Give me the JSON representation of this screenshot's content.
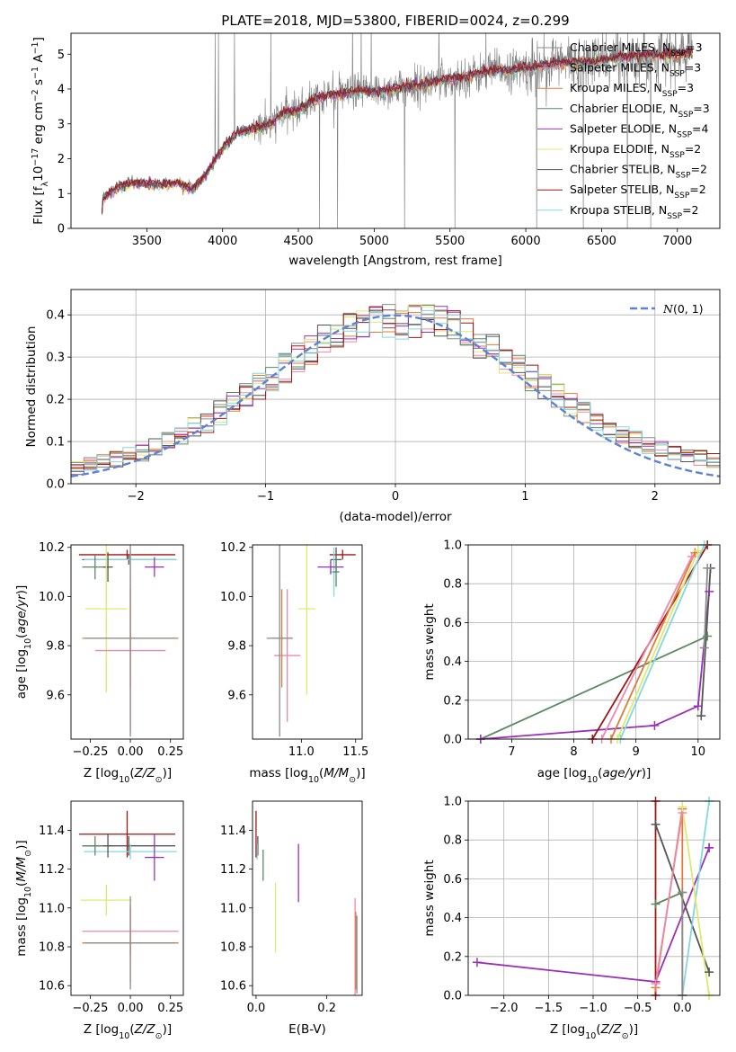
{
  "title": "PLATE=2018, MJD=53800, FIBERID=0024, z=0.299",
  "colors": {
    "Chabrier MILES": "#8c8c8c",
    "Salpeter MILES": "#ee88aa",
    "Kroupa MILES": "#e07b39",
    "Chabrier ELODIE": "#5c8a65",
    "Salpeter ELODIE": "#9b30b8",
    "Kroupa ELODIE": "#dfe870",
    "Chabrier STELIB": "#555555",
    "Salpeter STELIB": "#a01515",
    "Kroupa STELIB": "#82d8dd",
    "gaussian": "#5b84d6"
  },
  "models": [
    {
      "name": "Chabrier MILES",
      "nssp": 3
    },
    {
      "name": "Salpeter MILES",
      "nssp": 3
    },
    {
      "name": "Kroupa MILES",
      "nssp": 3
    },
    {
      "name": "Chabrier ELODIE",
      "nssp": 3
    },
    {
      "name": "Salpeter ELODIE",
      "nssp": 4
    },
    {
      "name": "Kroupa ELODIE",
      "nssp": 2
    },
    {
      "name": "Chabrier STELIB",
      "nssp": 2
    },
    {
      "name": "Salpeter STELIB",
      "nssp": 2
    },
    {
      "name": "Kroupa STELIB",
      "nssp": 2
    }
  ],
  "chart_data": [
    {
      "id": "spectrum",
      "type": "line",
      "xlabel": "wavelength [Angstrom, rest frame]",
      "ylabel": "Flux [f_λ 10^-17 erg cm^-2 s^-1 A^-1]",
      "xlim": [
        3000,
        7280
      ],
      "ylim": [
        0,
        5.6
      ],
      "xticks": [
        3500,
        4000,
        4500,
        5000,
        5500,
        6000,
        6500,
        7000
      ],
      "yticks": [
        0,
        1,
        2,
        3,
        4,
        5
      ],
      "legend": "top-right",
      "continuum_knots": [
        [
          3200,
          0.0
        ],
        [
          3210,
          0.85
        ],
        [
          3300,
          1.15
        ],
        [
          3400,
          1.3
        ],
        [
          3600,
          1.25
        ],
        [
          3700,
          1.3
        ],
        [
          3800,
          1.1
        ],
        [
          3900,
          1.6
        ],
        [
          4000,
          2.3
        ],
        [
          4100,
          2.75
        ],
        [
          4200,
          2.85
        ],
        [
          4300,
          2.95
        ],
        [
          4400,
          3.3
        ],
        [
          4500,
          3.4
        ],
        [
          4600,
          3.7
        ],
        [
          4700,
          3.85
        ],
        [
          4800,
          3.85
        ],
        [
          4900,
          3.95
        ],
        [
          5000,
          3.9
        ],
        [
          5100,
          4.0
        ],
        [
          5200,
          4.05
        ],
        [
          5300,
          4.1
        ],
        [
          5400,
          4.2
        ],
        [
          5500,
          4.3
        ],
        [
          5600,
          4.35
        ],
        [
          5700,
          4.45
        ],
        [
          5800,
          4.55
        ],
        [
          5900,
          4.55
        ],
        [
          6000,
          4.6
        ],
        [
          6200,
          4.75
        ],
        [
          6400,
          4.75
        ],
        [
          6600,
          4.9
        ],
        [
          6800,
          4.95
        ],
        [
          7000,
          5.0
        ],
        [
          7100,
          5.05
        ]
      ]
    },
    {
      "id": "residuals",
      "type": "step",
      "xlabel": "(data-model)/error",
      "ylabel": "Normed distribution",
      "xlim": [
        -2.5,
        2.5
      ],
      "ylim": [
        0,
        0.46
      ],
      "xticks": [
        -2,
        -1,
        0,
        1,
        2
      ],
      "yticks": [
        0.0,
        0.1,
        0.2,
        0.3,
        0.4
      ],
      "legend": "top-right",
      "gaussian_label": "N(0,1)",
      "grid": true
    },
    {
      "id": "age_vs_Z",
      "type": "errorbar",
      "xlabel": "Z [log10(Z/Z⊙)]",
      "ylabel": "age  [log10(age/yr)]",
      "xlim": [
        -0.37,
        0.33
      ],
      "ylim": [
        9.42,
        10.21
      ],
      "xticks": [
        -0.25,
        0.0,
        0.25
      ],
      "yticks": [
        9.6,
        9.8,
        10.0,
        10.2
      ],
      "points": [
        {
          "model": "Salpeter STELIB",
          "x": -0.02,
          "y": 10.17,
          "xerr": 0.3,
          "yerr": 0.02
        },
        {
          "model": "Chabrier STELIB",
          "x": -0.01,
          "y": 10.15,
          "xerr": 0.29,
          "yerr": 0.02
        },
        {
          "model": "Kroupa STELIB",
          "x": 0.0,
          "y": 10.15,
          "xerr": 0.29,
          "yerr": 0.04
        },
        {
          "model": "Chabrier ELODIE",
          "x": -0.22,
          "y": 10.12,
          "xerr": 0.08,
          "yerr": 0.05
        },
        {
          "model": "Salpeter ELODIE",
          "x": 0.15,
          "y": 10.12,
          "xerr": 0.06,
          "yerr": 0.04
        },
        {
          "model": "Chabrier STELIB",
          "x": -0.14,
          "y": 10.12,
          "xerr": 0.03,
          "yerr": 0.06
        },
        {
          "model": "Kroupa ELODIE",
          "x": -0.15,
          "y": 9.95,
          "xerr": 0.13,
          "yerr": 0.34
        },
        {
          "model": "Salpeter MILES",
          "x": 0.0,
          "y": 9.78,
          "xerr": 0.22,
          "yerr": 0.33
        },
        {
          "model": "Kroupa MILES",
          "x": 0.0,
          "y": 9.83,
          "xerr": 0.3,
          "yerr": 0.2
        },
        {
          "model": "Chabrier MILES",
          "x": 0.0,
          "y": 9.83,
          "xerr": 0.28,
          "yerr": 0.4
        }
      ]
    },
    {
      "id": "age_vs_mass",
      "type": "errorbar",
      "xlabel": "mass [log10(M/M⊙)]",
      "ylabel": "",
      "xlim": [
        10.55,
        11.56
      ],
      "ylim": [
        9.42,
        10.21
      ],
      "xticks": [
        11.0,
        11.5
      ],
      "yticks": [
        9.6,
        9.8,
        10.0,
        10.2
      ],
      "points": [
        {
          "model": "Salpeter STELIB",
          "x": 11.38,
          "y": 10.17,
          "xerr": 0.12,
          "yerr": 0.02
        },
        {
          "model": "Chabrier STELIB",
          "x": 11.32,
          "y": 10.15,
          "xerr": 0.05,
          "yerr": 0.05
        },
        {
          "model": "Kroupa STELIB",
          "x": 11.3,
          "y": 10.1,
          "xerr": 0.04,
          "yerr": 0.1
        },
        {
          "model": "Salpeter ELODIE",
          "x": 11.27,
          "y": 10.12,
          "xerr": 0.12,
          "yerr": 0.03
        },
        {
          "model": "Chabrier ELODIE",
          "x": 11.32,
          "y": 10.1,
          "xerr": 0.03,
          "yerr": 0.06
        },
        {
          "model": "Kroupa ELODIE",
          "x": 11.05,
          "y": 9.95,
          "xerr": 0.08,
          "yerr": 0.35
        },
        {
          "model": "Salpeter MILES",
          "x": 10.87,
          "y": 9.76,
          "xerr": 0.12,
          "yerr": 0.27
        },
        {
          "model": "Kroupa MILES",
          "x": 10.82,
          "y": 9.83,
          "xerr": 0.1,
          "yerr": 0.2
        },
        {
          "model": "Chabrier MILES",
          "x": 10.8,
          "y": 9.83,
          "xerr": 0.12,
          "yerr": 0.4
        }
      ]
    },
    {
      "id": "weight_vs_age",
      "type": "line",
      "xlabel": "age  [log10(age/yr)]",
      "ylabel": "mass weight",
      "xlim": [
        6.3,
        10.35
      ],
      "ylim": [
        0,
        1.0
      ],
      "xticks": [
        7,
        8,
        9,
        10
      ],
      "yticks": [
        0.0,
        0.2,
        0.4,
        0.6,
        0.8,
        1.0
      ],
      "grid": true,
      "series": [
        {
          "model": "Chabrier ELODIE",
          "x": [
            6.5,
            10.15
          ],
          "y": [
            0.0,
            0.53
          ]
        },
        {
          "model": "Salpeter ELODIE",
          "x": [
            6.5,
            9.3,
            10.0,
            10.18
          ],
          "y": [
            0.0,
            0.07,
            0.17,
            0.76
          ]
        },
        {
          "model": "Salpeter STELIB",
          "x": [
            8.3,
            10.15
          ],
          "y": [
            0.0,
            1.0
          ]
        },
        {
          "model": "Kroupa MILES",
          "x": [
            8.6,
            9.95
          ],
          "y": [
            0.0,
            0.96
          ]
        },
        {
          "model": "Salpeter MILES",
          "x": [
            8.45,
            9.9
          ],
          "y": [
            0.0,
            0.94
          ]
        },
        {
          "model": "Kroupa STELIB",
          "x": [
            8.75,
            10.1
          ],
          "y": [
            0.0,
            1.0
          ]
        },
        {
          "model": "Kroupa ELODIE",
          "x": [
            8.7,
            10.0
          ],
          "y": [
            0.0,
            0.97
          ]
        },
        {
          "model": "Chabrier STELIB",
          "x": [
            10.05,
            10.2
          ],
          "y": [
            0.12,
            0.88
          ]
        },
        {
          "model": "Chabrier MILES",
          "x": [
            10.1,
            10.15
          ],
          "y": [
            0.47,
            0.88
          ]
        }
      ]
    },
    {
      "id": "mass_vs_Z",
      "type": "errorbar",
      "xlabel": "Z [log10(Z/Z⊙)]",
      "ylabel": "mass [log10(M/M⊙)]",
      "xlim": [
        -0.37,
        0.33
      ],
      "ylim": [
        10.55,
        11.55
      ],
      "xticks": [
        -0.25,
        0.0,
        0.25
      ],
      "yticks": [
        10.6,
        10.8,
        11.0,
        11.2,
        11.4
      ],
      "points": [
        {
          "model": "Salpeter STELIB",
          "x": -0.02,
          "y": 11.38,
          "xerr": 0.3,
          "yerr": 0.12
        },
        {
          "model": "Chabrier STELIB",
          "x": -0.01,
          "y": 11.32,
          "xerr": 0.29,
          "yerr": 0.05
        },
        {
          "model": "Kroupa STELIB",
          "x": 0.0,
          "y": 11.29,
          "xerr": 0.29,
          "yerr": 0.04
        },
        {
          "model": "Chabrier ELODIE",
          "x": -0.22,
          "y": 11.32,
          "xerr": 0.08,
          "yerr": 0.05
        },
        {
          "model": "Salpeter ELODIE",
          "x": 0.15,
          "y": 11.26,
          "xerr": 0.06,
          "yerr": 0.12
        },
        {
          "model": "Chabrier STELIB",
          "x": -0.14,
          "y": 11.32,
          "xerr": 0.03,
          "yerr": 0.06
        },
        {
          "model": "Kroupa ELODIE",
          "x": -0.15,
          "y": 11.04,
          "xerr": 0.16,
          "yerr": 0.08
        },
        {
          "model": "Salpeter MILES",
          "x": 0.0,
          "y": 10.88,
          "xerr": 0.3,
          "yerr": 0.12
        },
        {
          "model": "Kroupa MILES",
          "x": 0.0,
          "y": 10.82,
          "xerr": 0.3,
          "yerr": 0.2
        },
        {
          "model": "Chabrier MILES",
          "x": 0.0,
          "y": 10.82,
          "xerr": 0.28,
          "yerr": 0.24
        }
      ]
    },
    {
      "id": "mass_vs_ebv",
      "type": "errorbar",
      "xlabel": "E(B-V)",
      "ylabel": "",
      "xlim": [
        -0.01,
        0.3
      ],
      "ylim": [
        10.55,
        11.55
      ],
      "xticks": [
        0.0,
        0.2
      ],
      "yticks": [
        10.6,
        10.8,
        11.0,
        11.2,
        11.4
      ],
      "points": [
        {
          "model": "Salpeter STELIB",
          "x": 0.0,
          "y": 11.38,
          "xerr": 0.0,
          "yerr": 0.12
        },
        {
          "model": "Chabrier STELIB",
          "x": 0.005,
          "y": 11.32,
          "xerr": 0.0,
          "yerr": 0.05
        },
        {
          "model": "Kroupa STELIB",
          "x": 0.003,
          "y": 11.29,
          "xerr": 0.0,
          "yerr": 0.04
        },
        {
          "model": "Chabrier ELODIE",
          "x": 0.02,
          "y": 11.22,
          "xerr": 0.0,
          "yerr": 0.08
        },
        {
          "model": "Salpeter ELODIE",
          "x": 0.12,
          "y": 11.18,
          "xerr": 0.0,
          "yerr": 0.15
        },
        {
          "model": "Kroupa ELODIE",
          "x": 0.055,
          "y": 10.95,
          "xerr": 0.0,
          "yerr": 0.18
        },
        {
          "model": "Salpeter MILES",
          "x": 0.28,
          "y": 10.8,
          "xerr": 0.0,
          "yerr": 0.25
        },
        {
          "model": "Kroupa MILES",
          "x": 0.282,
          "y": 10.78,
          "xerr": 0.0,
          "yerr": 0.2
        },
        {
          "model": "Chabrier MILES",
          "x": 0.285,
          "y": 10.76,
          "xerr": 0.0,
          "yerr": 0.2
        }
      ]
    },
    {
      "id": "weight_vs_Z",
      "type": "line",
      "xlabel": "Z [log10(Z/Z⊙)]",
      "ylabel": "mass weight",
      "xlim": [
        -2.4,
        0.42
      ],
      "ylim": [
        0,
        1.0
      ],
      "xticks": [
        -2.0,
        -1.5,
        -1.0,
        -0.5,
        0.0
      ],
      "yticks": [
        0.0,
        0.2,
        0.4,
        0.6,
        0.8,
        1.0
      ],
      "grid": true,
      "series": [
        {
          "model": "Salpeter ELODIE",
          "x": [
            -2.3,
            -0.3,
            0.3,
            0.3
          ],
          "y": [
            0.17,
            0.07,
            0.76,
            0.76
          ]
        },
        {
          "model": "Salpeter STELIB",
          "x": [
            -0.3,
            -0.3
          ],
          "y": [
            0.0,
            1.0
          ]
        },
        {
          "model": "Chabrier STELIB",
          "x": [
            -0.3,
            0.3
          ],
          "y": [
            0.88,
            0.12
          ]
        },
        {
          "model": "Chabrier ELODIE",
          "x": [
            -0.3,
            0.0
          ],
          "y": [
            0.47,
            0.53
          ]
        },
        {
          "model": "Kroupa MILES",
          "x": [
            -0.3,
            0.0,
            0.0
          ],
          "y": [
            0.04,
            0.96,
            0.0
          ]
        },
        {
          "model": "Salpeter MILES",
          "x": [
            -0.3,
            0.0
          ],
          "y": [
            0.06,
            0.94
          ]
        },
        {
          "model": "Kroupa STELIB",
          "x": [
            0.0,
            0.3
          ],
          "y": [
            0.0,
            1.0
          ]
        },
        {
          "model": "Kroupa ELODIE",
          "x": [
            0.0,
            0.3
          ],
          "y": [
            0.97,
            0.0
          ]
        },
        {
          "model": "Chabrier MILES",
          "x": [
            0.0,
            0.0
          ],
          "y": [
            0.0,
            0.53
          ]
        }
      ]
    }
  ]
}
